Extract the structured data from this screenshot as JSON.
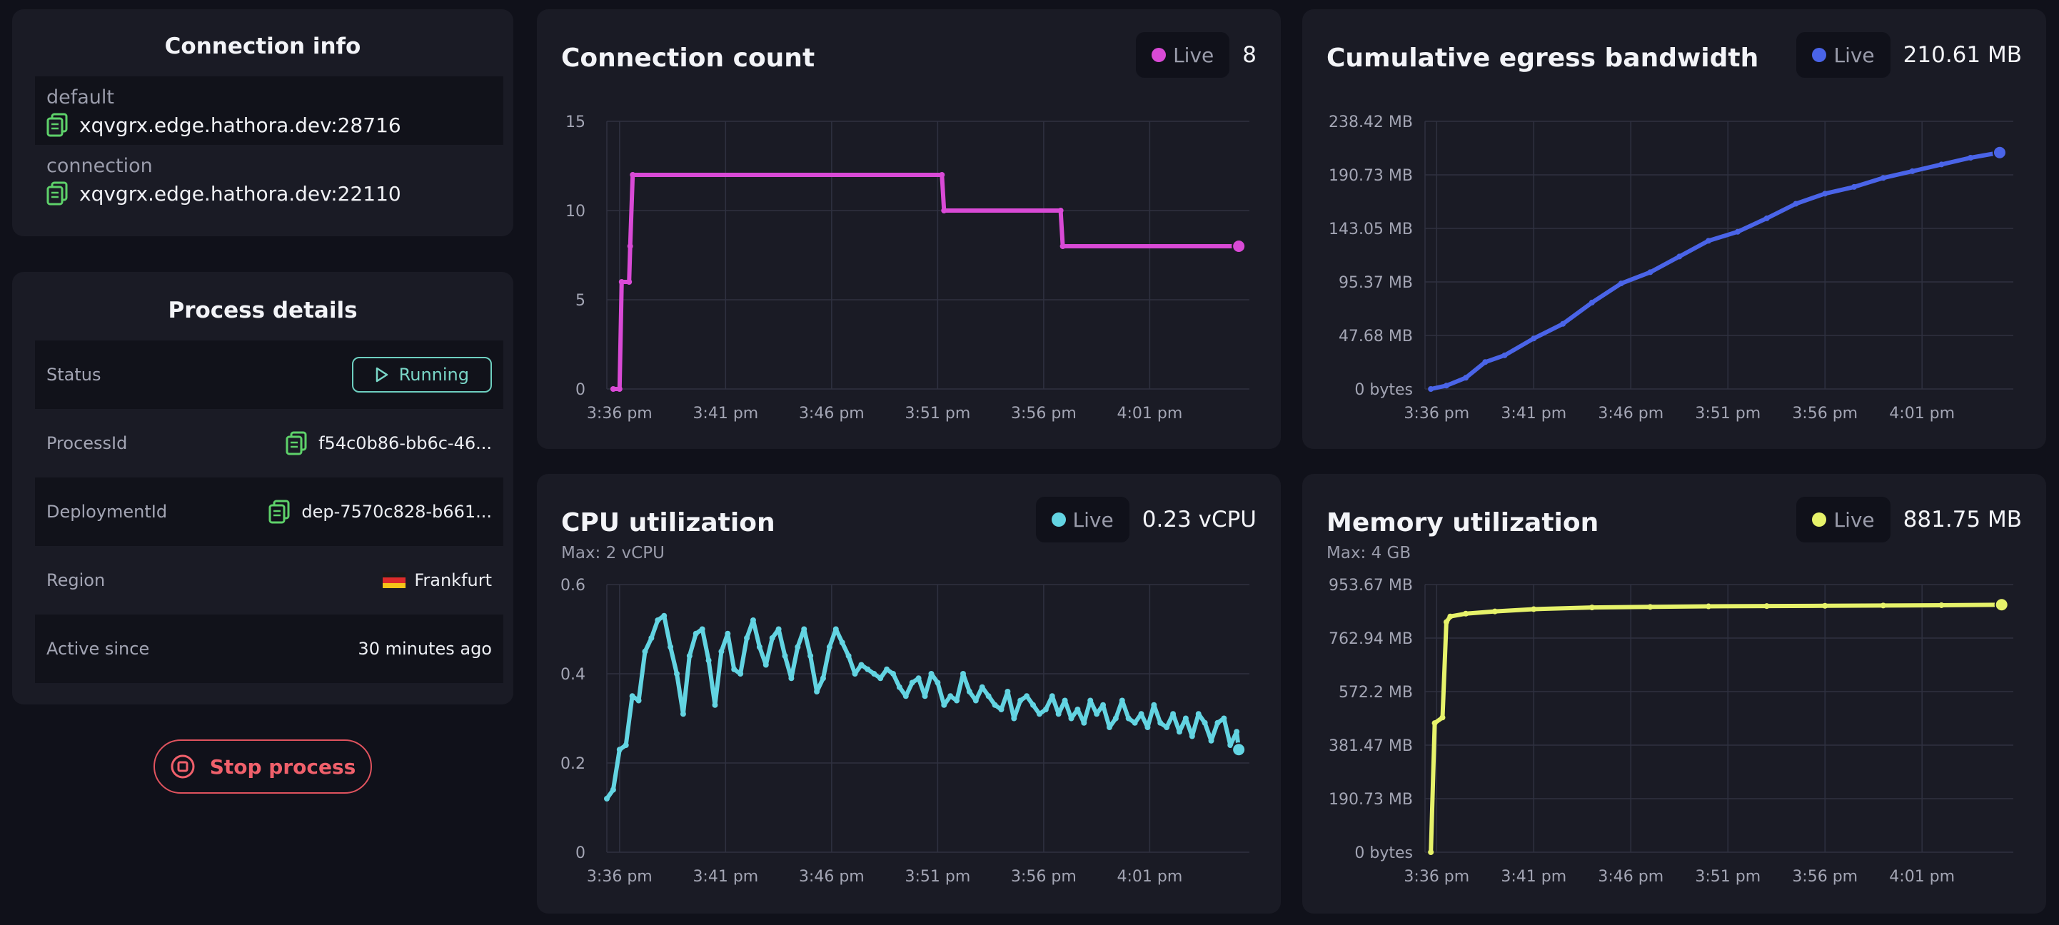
{
  "connection_info": {
    "title": "Connection info",
    "rows": [
      {
        "label": "default",
        "host": "xqvgrx.edge.hathora.dev:28716"
      },
      {
        "label": "connection",
        "host": "xqvgrx.edge.hathora.dev:22110"
      }
    ]
  },
  "process_details": {
    "title": "Process details",
    "status_label": "Status",
    "status_value": "Running",
    "process_id_label": "ProcessId",
    "process_id_value": "f54c0b86-bb6c-46...",
    "deployment_id_label": "DeploymentId",
    "deployment_id_value": "dep-7570c828-b661...",
    "region_label": "Region",
    "region_value": "Frankfurt",
    "active_since_label": "Active since",
    "active_since_value": "30 minutes ago"
  },
  "stop_button_label": "Stop process",
  "colors": {
    "connection": "#d94ad6",
    "egress": "#4a64e8",
    "cpu": "#63d4e2",
    "memory": "#e6f26a",
    "running": "#7ad7c8",
    "stop": "#f0606b",
    "copy_icon": "#5ed16a"
  },
  "icons": [
    "copy-icon",
    "play-icon",
    "stop-circle-icon",
    "germany-flag-icon"
  ],
  "charts": {
    "connection_count": {
      "title": "Connection count",
      "live_label": "Live",
      "live_value": "8",
      "color": "#d94ad6"
    },
    "egress": {
      "title": "Cumulative egress bandwidth",
      "live_label": "Live",
      "live_value": "210.61 MB",
      "color": "#4a64e8"
    },
    "cpu": {
      "title": "CPU utilization",
      "subtitle": "Max: 2 vCPU",
      "live_label": "Live",
      "live_value": "0.23 vCPU",
      "color": "#63d4e2"
    },
    "memory": {
      "title": "Memory utilization",
      "subtitle": "Max: 4 GB",
      "live_label": "Live",
      "live_value": "881.75 MB",
      "color": "#e6f26a"
    }
  },
  "chart_data": [
    {
      "id": "connection_count",
      "type": "line",
      "x_ticks": [
        "3:36 pm",
        "3:41 pm",
        "3:46 pm",
        "3:51 pm",
        "3:56 pm",
        "4:01 pm"
      ],
      "y_ticks": [
        "0",
        "5",
        "10",
        "15"
      ],
      "ylim": [
        0,
        15
      ],
      "xlim": [
        -0.6,
        29.7
      ],
      "grid": true,
      "series": [
        {
          "x": [
            -0.3,
            0.0,
            0.1,
            0.45,
            0.5,
            0.62,
            15.2,
            15.3,
            20.8,
            20.9,
            29.2
          ],
          "y": [
            0,
            0,
            6,
            6,
            8,
            12,
            12,
            10,
            10,
            8,
            8
          ]
        }
      ]
    },
    {
      "id": "egress",
      "type": "line",
      "x_ticks": [
        "3:36 pm",
        "3:41 pm",
        "3:46 pm",
        "3:51 pm",
        "3:56 pm",
        "4:01 pm"
      ],
      "y_ticks": [
        "0 bytes",
        "47.68 MB",
        "95.37 MB",
        "143.05 MB",
        "190.73 MB",
        "238.42 MB"
      ],
      "ylim": [
        0,
        238.42
      ],
      "xlim": [
        -0.6,
        29.7
      ],
      "grid": true,
      "series": [
        {
          "x": [
            -0.3,
            0.5,
            1.5,
            2.5,
            3.5,
            5,
            6.5,
            8,
            9.5,
            11,
            12.5,
            14,
            15.5,
            17,
            18.5,
            20,
            21.5,
            23,
            24.5,
            26,
            27.5,
            29
          ],
          "y": [
            0,
            3,
            10,
            24,
            30,
            45,
            58,
            77,
            94,
            104,
            118,
            132,
            140,
            152,
            165,
            174,
            180,
            188,
            194,
            200,
            206,
            210.61
          ]
        }
      ]
    },
    {
      "id": "cpu",
      "type": "line",
      "x_ticks": [
        "3:36 pm",
        "3:41 pm",
        "3:46 pm",
        "3:51 pm",
        "3:56 pm",
        "4:01 pm"
      ],
      "y_ticks": [
        "0",
        "0.2",
        "0.4",
        "0.6"
      ],
      "ylim": [
        0,
        0.6
      ],
      "xlim": [
        -0.6,
        29.7
      ],
      "grid": true,
      "series": [
        {
          "x": [
            -0.6,
            -0.3,
            0,
            0.3,
            0.6,
            0.9,
            1.2,
            1.5,
            1.8,
            2.1,
            2.4,
            2.7,
            3.0,
            3.3,
            3.6,
            3.9,
            4.2,
            4.5,
            4.8,
            5.1,
            5.4,
            5.7,
            6.0,
            6.3,
            6.6,
            6.9,
            7.2,
            7.5,
            7.8,
            8.1,
            8.4,
            8.7,
            9.0,
            9.3,
            9.6,
            9.9,
            10.2,
            10.5,
            10.8,
            11.1,
            11.4,
            11.7,
            12.0,
            12.3,
            12.6,
            12.9,
            13.2,
            13.5,
            13.8,
            14.1,
            14.4,
            14.7,
            15.0,
            15.3,
            15.6,
            15.9,
            16.2,
            16.5,
            16.8,
            17.1,
            17.4,
            17.7,
            18.0,
            18.3,
            18.6,
            18.9,
            19.2,
            19.5,
            19.8,
            20.1,
            20.4,
            20.7,
            21.0,
            21.3,
            21.6,
            21.9,
            22.2,
            22.5,
            22.8,
            23.1,
            23.4,
            23.7,
            24.0,
            24.3,
            24.6,
            24.9,
            25.2,
            25.5,
            25.8,
            26.1,
            26.4,
            26.7,
            27.0,
            27.3,
            27.6,
            27.9,
            28.2,
            28.5,
            28.8,
            29.1,
            29.2
          ],
          "y": [
            0.12,
            0.14,
            0.23,
            0.24,
            0.35,
            0.34,
            0.45,
            0.48,
            0.52,
            0.53,
            0.46,
            0.4,
            0.31,
            0.44,
            0.49,
            0.5,
            0.43,
            0.33,
            0.45,
            0.49,
            0.41,
            0.4,
            0.48,
            0.52,
            0.46,
            0.42,
            0.48,
            0.5,
            0.44,
            0.39,
            0.46,
            0.5,
            0.44,
            0.36,
            0.39,
            0.46,
            0.5,
            0.47,
            0.44,
            0.4,
            0.42,
            0.41,
            0.4,
            0.39,
            0.41,
            0.4,
            0.37,
            0.35,
            0.38,
            0.39,
            0.35,
            0.4,
            0.38,
            0.33,
            0.35,
            0.34,
            0.4,
            0.36,
            0.34,
            0.37,
            0.35,
            0.33,
            0.32,
            0.36,
            0.3,
            0.34,
            0.35,
            0.33,
            0.31,
            0.32,
            0.35,
            0.31,
            0.34,
            0.3,
            0.32,
            0.29,
            0.34,
            0.31,
            0.33,
            0.28,
            0.3,
            0.34,
            0.3,
            0.29,
            0.31,
            0.28,
            0.33,
            0.29,
            0.28,
            0.31,
            0.27,
            0.3,
            0.26,
            0.31,
            0.29,
            0.25,
            0.29,
            0.3,
            0.24,
            0.27,
            0.23
          ]
        }
      ]
    },
    {
      "id": "memory",
      "type": "line",
      "x_ticks": [
        "3:36 pm",
        "3:41 pm",
        "3:46 pm",
        "3:51 pm",
        "3:56 pm",
        "4:01 pm"
      ],
      "y_ticks": [
        "0 bytes",
        "190.73 MB",
        "381.47 MB",
        "572.2 MB",
        "762.94 MB",
        "953.67 MB"
      ],
      "ylim": [
        0,
        953.67
      ],
      "xlim": [
        -0.6,
        29.7
      ],
      "grid": true,
      "series": [
        {
          "x": [
            -0.3,
            -0.1,
            0.3,
            0.5,
            0.7,
            1.5,
            3,
            5,
            8,
            11,
            14,
            17,
            20,
            23,
            26,
            29.1
          ],
          "y": [
            0,
            460,
            480,
            820,
            840,
            850,
            858,
            866,
            872,
            874,
            876,
            877,
            878,
            879,
            880,
            881.75
          ]
        }
      ]
    }
  ]
}
